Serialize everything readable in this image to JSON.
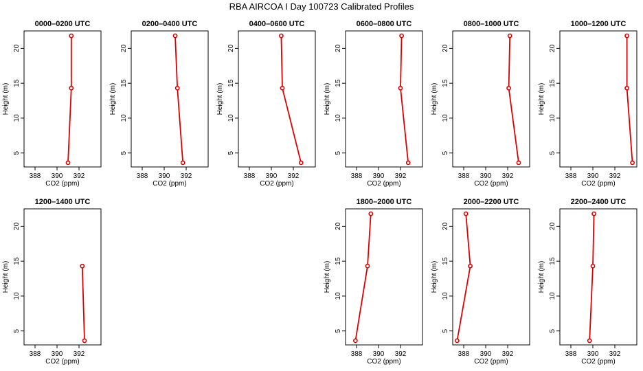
{
  "figure": {
    "title": "RBA AIRCOA I  Day 100723  Calibrated Profiles"
  },
  "colors": {
    "series": "#dd0000",
    "axis": "#000000",
    "background": "#ffffff"
  },
  "chart_data": [
    {
      "type": "line",
      "title": "0000–0200 UTC",
      "xlabel": "CO2 (ppm)",
      "ylabel": "Height (m)",
      "xlim": [
        387,
        394
      ],
      "ylim": [
        3,
        22.5
      ],
      "xticks": [
        388,
        390,
        392
      ],
      "yticks": [
        5,
        10,
        15,
        20
      ],
      "points": [
        {
          "x": 391.3,
          "y": 21.8
        },
        {
          "x": 391.3,
          "y": 14.3
        },
        {
          "x": 391.0,
          "y": 3.6
        }
      ]
    },
    {
      "type": "line",
      "title": "0200–0400 UTC",
      "xlabel": "CO2 (ppm)",
      "ylabel": "Height (m)",
      "xlim": [
        387,
        394
      ],
      "ylim": [
        3,
        22.5
      ],
      "xticks": [
        388,
        390,
        392
      ],
      "yticks": [
        5,
        10,
        15,
        20
      ],
      "points": [
        {
          "x": 391.0,
          "y": 21.8
        },
        {
          "x": 391.2,
          "y": 14.3
        },
        {
          "x": 391.7,
          "y": 3.6
        }
      ]
    },
    {
      "type": "line",
      "title": "0400–0600 UTC",
      "xlabel": "CO2 (ppm)",
      "ylabel": "Height (m)",
      "xlim": [
        387,
        394
      ],
      "ylim": [
        3,
        22.5
      ],
      "xticks": [
        388,
        390,
        392
      ],
      "yticks": [
        5,
        10,
        15,
        20
      ],
      "points": [
        {
          "x": 390.9,
          "y": 21.8
        },
        {
          "x": 391.0,
          "y": 14.3
        },
        {
          "x": 392.7,
          "y": 3.6
        }
      ]
    },
    {
      "type": "line",
      "title": "0600–0800 UTC",
      "xlabel": "CO2 (ppm)",
      "ylabel": "Height (m)",
      "xlim": [
        387,
        394
      ],
      "ylim": [
        3,
        22.5
      ],
      "xticks": [
        388,
        390,
        392
      ],
      "yticks": [
        5,
        10,
        15,
        20
      ],
      "points": [
        {
          "x": 392.1,
          "y": 21.8
        },
        {
          "x": 392.0,
          "y": 14.3
        },
        {
          "x": 392.7,
          "y": 3.6
        }
      ]
    },
    {
      "type": "line",
      "title": "0800–1000 UTC",
      "xlabel": "CO2 (ppm)",
      "ylabel": "Height (m)",
      "xlim": [
        387,
        394
      ],
      "ylim": [
        3,
        22.5
      ],
      "xticks": [
        388,
        390,
        392
      ],
      "yticks": [
        5,
        10,
        15,
        20
      ],
      "points": [
        {
          "x": 392.2,
          "y": 21.8
        },
        {
          "x": 392.1,
          "y": 14.3
        },
        {
          "x": 393.0,
          "y": 3.6
        }
      ]
    },
    {
      "type": "line",
      "title": "1000–1200 UTC",
      "xlabel": "CO2 (ppm)",
      "ylabel": "Height (m)",
      "xlim": [
        387,
        394
      ],
      "ylim": [
        3,
        22.5
      ],
      "xticks": [
        388,
        390,
        392
      ],
      "yticks": [
        5,
        10,
        15,
        20
      ],
      "points": [
        {
          "x": 393.1,
          "y": 21.8
        },
        {
          "x": 393.1,
          "y": 14.3
        },
        {
          "x": 393.6,
          "y": 3.6
        }
      ]
    },
    {
      "type": "line",
      "title": "1200–1400 UTC",
      "xlabel": "CO2 (ppm)",
      "ylabel": "Height (m)",
      "xlim": [
        387,
        394
      ],
      "ylim": [
        3,
        22.5
      ],
      "xticks": [
        388,
        390,
        392
      ],
      "yticks": [
        5,
        10,
        15,
        20
      ],
      "points": [
        {
          "x": 392.3,
          "y": 14.3
        },
        {
          "x": 392.5,
          "y": 3.6
        }
      ]
    },
    {
      "type": "line",
      "title": "1800–2000 UTC",
      "xlabel": "CO2 (ppm)",
      "ylabel": "Height (m)",
      "xlim": [
        387,
        394
      ],
      "ylim": [
        3,
        22.5
      ],
      "xticks": [
        388,
        390,
        392
      ],
      "yticks": [
        5,
        10,
        15,
        20
      ],
      "points": [
        {
          "x": 389.3,
          "y": 21.8
        },
        {
          "x": 389.0,
          "y": 14.3
        },
        {
          "x": 387.9,
          "y": 3.6
        }
      ]
    },
    {
      "type": "line",
      "title": "2000–2200 UTC",
      "xlabel": "CO2 (ppm)",
      "ylabel": "Height (m)",
      "xlim": [
        387,
        394
      ],
      "ylim": [
        3,
        22.5
      ],
      "xticks": [
        388,
        390,
        392
      ],
      "yticks": [
        5,
        10,
        15,
        20
      ],
      "points": [
        {
          "x": 388.2,
          "y": 21.8
        },
        {
          "x": 388.6,
          "y": 14.3
        },
        {
          "x": 387.4,
          "y": 3.6
        }
      ]
    },
    {
      "type": "line",
      "title": "2200–2400 UTC",
      "xlabel": "CO2 (ppm)",
      "ylabel": "Height (m)",
      "xlim": [
        387,
        394
      ],
      "ylim": [
        3,
        22.5
      ],
      "xticks": [
        388,
        390,
        392
      ],
      "yticks": [
        5,
        10,
        15,
        20
      ],
      "points": [
        {
          "x": 390.1,
          "y": 21.8
        },
        {
          "x": 390.0,
          "y": 14.3
        },
        {
          "x": 389.7,
          "y": 3.6
        }
      ]
    }
  ]
}
